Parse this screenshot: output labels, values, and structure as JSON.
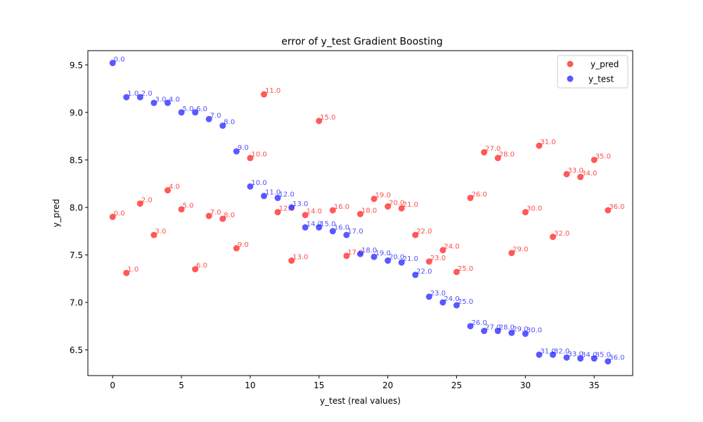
{
  "chart_data": {
    "type": "scatter",
    "title": "error of y_test Gradient Boosting",
    "xlabel": "y_test (real values)",
    "ylabel": "y_pred",
    "xlim": [
      -1.8,
      37.8
    ],
    "ylim": [
      6.23,
      9.65
    ],
    "x_ticks": [
      0,
      5,
      10,
      15,
      20,
      25,
      30,
      35
    ],
    "y_ticks": [
      6.5,
      7.0,
      7.5,
      8.0,
      8.5,
      9.0,
      9.5
    ],
    "grid": false,
    "legend_position": "top-right",
    "series": [
      {
        "name": "y_pred",
        "color": "#ff0000",
        "x": [
          0,
          1,
          2,
          3,
          4,
          5,
          6,
          7,
          8,
          9,
          10,
          11,
          12,
          13,
          14,
          15,
          16,
          17,
          18,
          19,
          20,
          21,
          22,
          23,
          24,
          25,
          26,
          27,
          28,
          29,
          30,
          31,
          32,
          33,
          34,
          35,
          36
        ],
        "y": [
          7.9,
          7.31,
          8.04,
          7.71,
          8.18,
          7.98,
          7.35,
          7.91,
          7.88,
          7.57,
          8.52,
          9.19,
          7.95,
          7.44,
          7.92,
          8.91,
          7.97,
          7.49,
          7.93,
          8.09,
          8.01,
          7.99,
          7.71,
          7.43,
          7.55,
          7.32,
          8.1,
          8.58,
          8.52,
          7.52,
          7.95,
          8.65,
          7.69,
          8.35,
          8.32,
          8.5,
          7.97
        ],
        "labels": [
          "0.0",
          "1.0",
          "2.0",
          "3.0",
          "4.0",
          "5.0",
          "6.0",
          "7.0",
          "8.0",
          "9.0",
          "10.0",
          "11.0",
          "12.0",
          "13.0",
          "14.0",
          "15.0",
          "16.0",
          "17.0",
          "18.0",
          "19.0",
          "20.0",
          "21.0",
          "22.0",
          "23.0",
          "24.0",
          "25.0",
          "26.0",
          "27.0",
          "28.0",
          "29.0",
          "30.0",
          "31.0",
          "32.0",
          "33.0",
          "34.0",
          "35.0",
          "36.0"
        ]
      },
      {
        "name": "y_test",
        "color": "#0000ff",
        "x": [
          0,
          1,
          2,
          3,
          4,
          5,
          6,
          7,
          8,
          9,
          10,
          11,
          12,
          13,
          14,
          15,
          16,
          17,
          18,
          19,
          20,
          21,
          22,
          23,
          24,
          25,
          26,
          27,
          28,
          29,
          30,
          31,
          32,
          33,
          34,
          35,
          36
        ],
        "y": [
          9.52,
          9.16,
          9.16,
          9.1,
          9.1,
          9.0,
          9.0,
          8.93,
          8.86,
          8.59,
          8.22,
          8.12,
          8.1,
          8.0,
          7.79,
          7.79,
          7.75,
          7.71,
          7.51,
          7.48,
          7.44,
          7.42,
          7.29,
          7.06,
          7.0,
          6.97,
          6.75,
          6.7,
          6.7,
          6.68,
          6.67,
          6.45,
          6.45,
          6.42,
          6.41,
          6.41,
          6.38
        ],
        "labels": [
          "0.0",
          "1.0",
          "2.0",
          "3.0",
          "4.0",
          "5.0",
          "6.0",
          "7.0",
          "8.0",
          "9.0",
          "10.0",
          "11.0",
          "12.0",
          "13.0",
          "14.0",
          "15.0",
          "16.0",
          "17.0",
          "18.0",
          "19.0",
          "20.0",
          "21.0",
          "22.0",
          "23.0",
          "24.0",
          "25.0",
          "26.0",
          "27.0",
          "28.0",
          "29.0",
          "30.0",
          "31.0",
          "32.0",
          "33.0",
          "34.0",
          "35.0",
          "36.0"
        ]
      }
    ]
  }
}
